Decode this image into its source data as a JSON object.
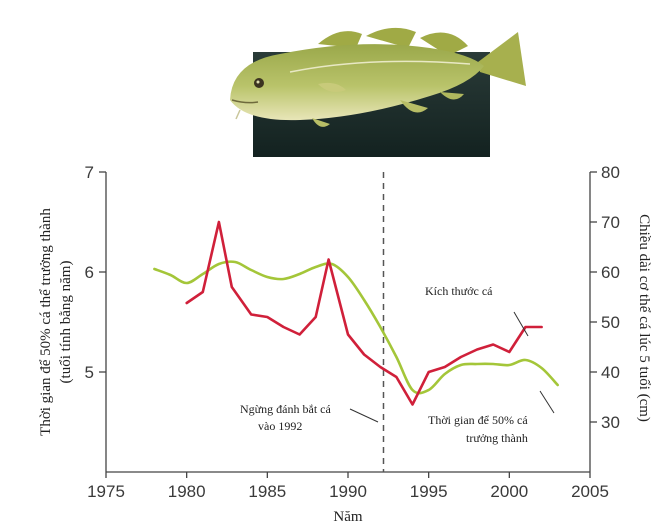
{
  "chart_data": {
    "type": "line",
    "title": "",
    "xlabel": "Năm",
    "ylabel_left": "Thời gian để 50% cá thể trưởng thành",
    "ylabel_left_sub": "(tuổi tính bằng năm)",
    "ylabel_right": "Chiều dài cơ thể cá lúc 5 tuổi (cm)",
    "xlim": [
      1975,
      2005
    ],
    "ylim_left": [
      4,
      7
    ],
    "ylim_right": [
      20,
      80
    ],
    "x_ticks": [
      1975,
      1980,
      1985,
      1990,
      1995,
      2000,
      2005
    ],
    "y_ticks_left": [
      5,
      6,
      7
    ],
    "y_ticks_right": [
      30,
      40,
      50,
      60,
      70,
      80
    ],
    "grid": false,
    "vline": {
      "x": 1992.2,
      "label_line1": "Ngừng đánh bắt cá",
      "label_line2": "vào 1992"
    },
    "series": [
      {
        "name": "Thời gian để 50% cá trưởng thành",
        "name_line1": "Thời gian để 50% cá",
        "name_line2": "trưởng thành",
        "axis": "left",
        "color": "#a4c639",
        "x": [
          1978,
          1979,
          1980,
          1981,
          1982,
          1983,
          1984,
          1985,
          1986,
          1987,
          1988,
          1989,
          1990,
          1991,
          1992,
          1993,
          1994,
          1995,
          1996,
          1997,
          1998,
          1999,
          2000,
          2001,
          2002,
          2003
        ],
        "values": [
          6.03,
          5.97,
          5.89,
          5.98,
          6.08,
          6.1,
          6.02,
          5.95,
          5.93,
          5.98,
          6.05,
          6.08,
          5.95,
          5.72,
          5.45,
          5.15,
          4.82,
          4.82,
          4.98,
          5.07,
          5.08,
          5.08,
          5.07,
          5.12,
          5.04,
          4.87
        ]
      },
      {
        "name": "Kích thước cá",
        "axis": "right",
        "color": "#d0203a",
        "x": [
          1980,
          1981,
          1982,
          1982.8,
          1984,
          1985,
          1986,
          1987,
          1988,
          1988.8,
          1990,
          1991,
          1992,
          1993,
          1994,
          1995,
          1996,
          1997,
          1998,
          1999,
          2000,
          2001,
          2002
        ],
        "values": [
          53.8,
          56.0,
          70.0,
          57.0,
          51.5,
          51.0,
          49.0,
          47.5,
          51.0,
          62.5,
          47.5,
          43.5,
          41.0,
          39.0,
          33.5,
          40.0,
          41.0,
          43.0,
          44.5,
          45.5,
          44.0,
          49.0,
          49.0
        ]
      }
    ]
  }
}
